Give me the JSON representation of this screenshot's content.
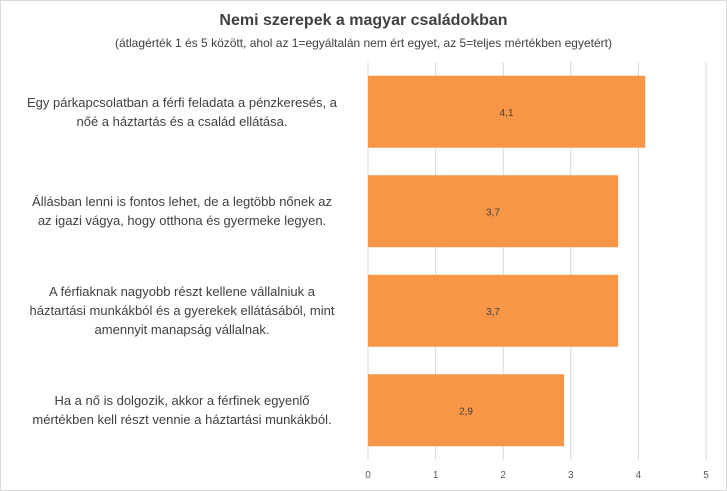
{
  "chart_data": {
    "type": "bar",
    "orientation": "horizontal",
    "title": "Nemi szerepek a magyar családokban",
    "subtitle": "(átlagérték 1 és 5 között, ahol az 1=egyáltalán nem ért egyet, az 5=teljes mértékben egyetért)",
    "categories": [
      [
        "Egy párkapcsolatban a férfi feladata a pénzkeresés, a",
        "nőé a háztartás és a család ellátása."
      ],
      [
        "Állásban lenni is fontos lehet, de a legtöbb nőnek az",
        "az igazi vágya, hogy otthona és gyermeke legyen."
      ],
      [
        "A férfiaknak nagyobb részt kellene vállalniuk a",
        "háztartási munkákból és a gyerekek ellátásából, mint",
        "amennyit manapság vállalnak."
      ],
      [
        "Ha a nő is dolgozik, akkor a férfinek egyenlő",
        "mértékben kell részt vennie a háztartási munkákból."
      ]
    ],
    "values": [
      4.1,
      3.7,
      3.7,
      2.9
    ],
    "data_labels": [
      "4,1",
      "3,7",
      "3,7",
      "2,9"
    ],
    "xlim": [
      0,
      5
    ],
    "xticks": [
      "0",
      "1",
      "2",
      "3",
      "4",
      "5"
    ],
    "grid": true,
    "bar_color": "#F79646",
    "grid_color": "#D9D9D9"
  }
}
